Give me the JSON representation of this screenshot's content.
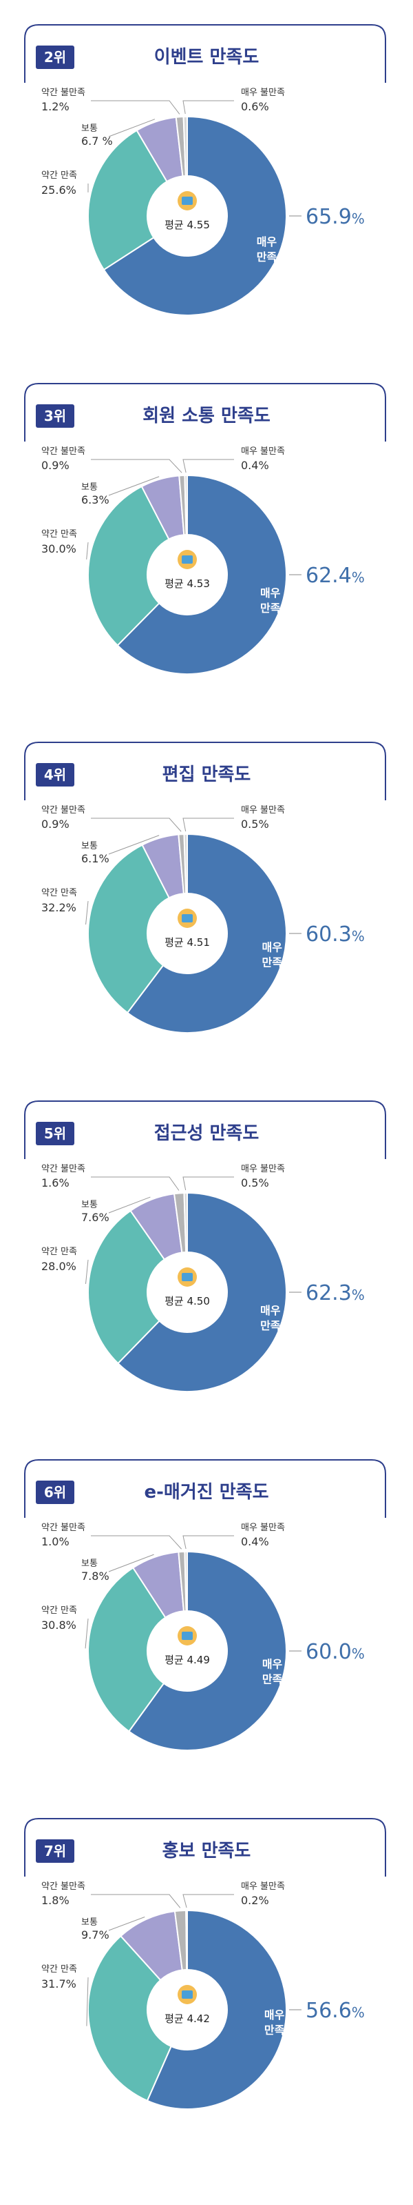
{
  "colors": {
    "very_satisfied": "#4677b2",
    "satisfied": "#5fbcb4",
    "neutral": "#a39fd0",
    "unsatisfied": "#b4b4b4",
    "very_unsatisfied": "#d8d8d8",
    "frame": "#2e3f8c",
    "highlight": "#3f6faa"
  },
  "chart_data": [
    {
      "type": "pie",
      "rank": "2위",
      "title": "이벤트 만족도",
      "average": "평균 4.55",
      "icon": "gift-icon",
      "inner_label": [
        "매우",
        "만족"
      ],
      "highlight_value": "65.9",
      "unit": "%",
      "slices": [
        {
          "name": "매우 만족",
          "value": 65.9
        },
        {
          "name": "약간 만족",
          "value": 25.6,
          "label": "25.6%"
        },
        {
          "name": "보통",
          "value": 6.7,
          "label": "6.7 %"
        },
        {
          "name": "약간 불만족",
          "value": 1.2,
          "label": "1.2%"
        },
        {
          "name": "매우 불만족",
          "value": 0.6,
          "label": "0.6%"
        }
      ]
    },
    {
      "type": "pie",
      "rank": "3위",
      "title": "회원 소통 만족도",
      "average": "평균 4.53",
      "icon": "chat-bubble-icon",
      "inner_label": [
        "매우",
        "만족"
      ],
      "highlight_value": "62.4",
      "unit": "%",
      "slices": [
        {
          "name": "매우 만족",
          "value": 62.4
        },
        {
          "name": "약간 만족",
          "value": 30.0,
          "label": "30.0%"
        },
        {
          "name": "보통",
          "value": 6.3,
          "label": "6.3%"
        },
        {
          "name": "약간 불만족",
          "value": 0.9,
          "label": "0.9%"
        },
        {
          "name": "매우 불만족",
          "value": 0.4,
          "label": "0.4%"
        }
      ]
    },
    {
      "type": "pie",
      "rank": "4위",
      "title": "편집 만족도",
      "average": "평균 4.51",
      "icon": "document-icon",
      "inner_label": [
        "매우",
        "만족"
      ],
      "highlight_value": "60.3",
      "unit": "%",
      "slices": [
        {
          "name": "매우 만족",
          "value": 60.3
        },
        {
          "name": "약간 만족",
          "value": 32.2,
          "label": "32.2%"
        },
        {
          "name": "보통",
          "value": 6.1,
          "label": "6.1%"
        },
        {
          "name": "약간 불만족",
          "value": 0.9,
          "label": "0.9%"
        },
        {
          "name": "매우 불만족",
          "value": 0.5,
          "label": "0.5%"
        }
      ]
    },
    {
      "type": "pie",
      "rank": "5위",
      "title": "접근성 만족도",
      "average": "평균 4.50",
      "icon": "pointer-click-icon",
      "inner_label": [
        "매우",
        "만족"
      ],
      "highlight_value": "62.3",
      "unit": "%",
      "slices": [
        {
          "name": "매우 만족",
          "value": 62.3
        },
        {
          "name": "약간 만족",
          "value": 28.0,
          "label": "28.0%"
        },
        {
          "name": "보통",
          "value": 7.6,
          "label": "7.6%"
        },
        {
          "name": "약간 불만족",
          "value": 1.6,
          "label": "1.6%"
        },
        {
          "name": "매우 불만족",
          "value": 0.5,
          "label": "0.5%"
        }
      ]
    },
    {
      "type": "pie",
      "rank": "6위",
      "title": "e-매거진 만족도",
      "average": "평균 4.49",
      "icon": "magazine-icon",
      "inner_label": [
        "매우",
        "만족"
      ],
      "highlight_value": "60.0",
      "unit": "%",
      "slices": [
        {
          "name": "매우 만족",
          "value": 60.0
        },
        {
          "name": "약간 만족",
          "value": 30.8,
          "label": "30.8%"
        },
        {
          "name": "보통",
          "value": 7.8,
          "label": "7.8%"
        },
        {
          "name": "약간 불만족",
          "value": 1.0,
          "label": "1.0%"
        },
        {
          "name": "매우 불만족",
          "value": 0.4,
          "label": "0.4%"
        }
      ]
    },
    {
      "type": "pie",
      "rank": "7위",
      "title": "홍보 만족도",
      "average": "평균 4.42",
      "icon": "megaphone-icon",
      "inner_label": [
        "매우",
        "만족"
      ],
      "highlight_value": "56.6",
      "unit": "%",
      "slices": [
        {
          "name": "매우 만족",
          "value": 56.6
        },
        {
          "name": "약간 만족",
          "value": 31.7,
          "label": "31.7%"
        },
        {
          "name": "보통",
          "value": 9.7,
          "label": "9.7%"
        },
        {
          "name": "약간 불만족",
          "value": 1.8,
          "label": "1.8%"
        },
        {
          "name": "매우 불만족",
          "value": 0.2,
          "label": "0.2%"
        }
      ]
    }
  ]
}
